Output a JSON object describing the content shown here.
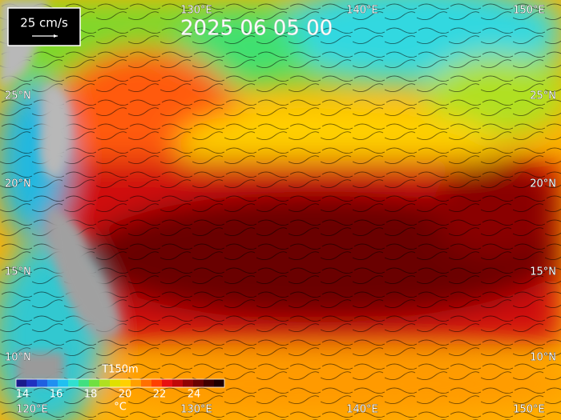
{
  "legend": {
    "scale": "25 cm/s"
  },
  "timestamp": "2025 06 05 00",
  "lon_labels_top": [
    "130°E",
    "140°E",
    "150°E"
  ],
  "lon_labels_bottom": [
    "120°E",
    "130°E",
    "140°E",
    "150°E"
  ],
  "lat_labels_left": [
    "25°N",
    "20°N",
    "15°N",
    "10°N"
  ],
  "lat_labels_right": [
    "25°N",
    "20°N",
    "15°N",
    "10°N"
  ],
  "colorbar": {
    "title": "T150m",
    "ticks": [
      14,
      16,
      18,
      20,
      22,
      24
    ],
    "unit": "°C"
  }
}
